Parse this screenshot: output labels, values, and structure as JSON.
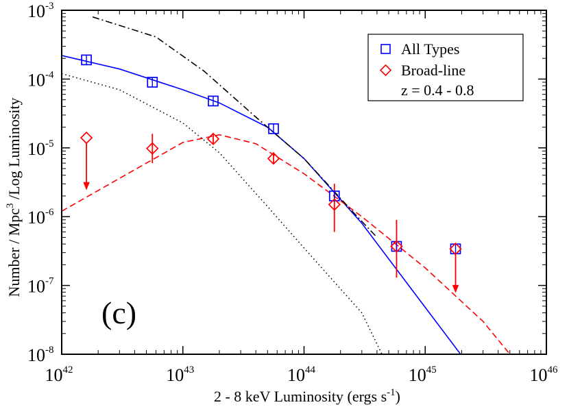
{
  "chart_data": {
    "type": "scatter",
    "title": "",
    "xlabel": "2 - 8 keV Luminosity  (ergs s",
    "xlabel_sup": "-1",
    "xlabel_end": ")",
    "ylabel": "Number / Mpc",
    "ylabel_sup": "3",
    "ylabel_end": " /Log Luminosity",
    "x_scale": "log",
    "y_scale": "log",
    "xlim": [
      1e+42,
      1e+46
    ],
    "ylim": [
      1e-08,
      0.001
    ],
    "x_ticks": [
      {
        "value": 1e+42,
        "base": "10",
        "exp": "42"
      },
      {
        "value": 1e+43,
        "base": "10",
        "exp": "43"
      },
      {
        "value": 1e+44,
        "base": "10",
        "exp": "44"
      },
      {
        "value": 1e+45,
        "base": "10",
        "exp": "45"
      },
      {
        "value": 1e+46,
        "base": "10",
        "exp": "46"
      }
    ],
    "y_ticks": [
      {
        "value": 1e-08,
        "base": "10",
        "exp": "-8"
      },
      {
        "value": 1e-07,
        "base": "10",
        "exp": "-7"
      },
      {
        "value": 1e-06,
        "base": "10",
        "exp": "-6"
      },
      {
        "value": 1e-05,
        "base": "10",
        "exp": "-5"
      },
      {
        "value": 0.0001,
        "base": "10",
        "exp": "-4"
      },
      {
        "value": 0.001,
        "base": "10",
        "exp": "-3"
      }
    ],
    "annotation": "(c)",
    "legend": {
      "position": "top-right",
      "entries": [
        {
          "label": "All Types",
          "marker": "square",
          "color": "#0000ff"
        },
        {
          "label": "Broad-line",
          "marker": "diamond",
          "color": "#ff0000"
        }
      ],
      "note": "z = 0.4 - 0.8"
    },
    "series": [
      {
        "name": "All Types",
        "marker": "square",
        "color": "#0000ff",
        "points": [
          {
            "x": 1.6e+42,
            "y": 0.00019
          },
          {
            "x": 5.6e+42,
            "y": 9e-05
          },
          {
            "x": 1.78e+43,
            "y": 4.8e-05
          },
          {
            "x": 5.6e+43,
            "y": 1.9e-05
          },
          {
            "x": 1.78e+44,
            "y": 2e-06
          },
          {
            "x": 5.8e+44,
            "y": 3.7e-07
          },
          {
            "x": 1.78e+45,
            "y": 3.4e-07
          }
        ]
      },
      {
        "name": "Broad-line",
        "marker": "diamond",
        "color": "#ff0000",
        "points": [
          {
            "x": 1.6e+42,
            "y": 1.4e-05,
            "upper_limit": true,
            "err_low": 2.5e-06
          },
          {
            "x": 5.6e+42,
            "y": 9.8e-06,
            "err_low": 6e-06,
            "err_high": 1.6e-05
          },
          {
            "x": 1.78e+43,
            "y": 1.35e-05,
            "err_low": 1.15e-05,
            "err_high": 1.6e-05
          },
          {
            "x": 5.6e+43,
            "y": 7e-06,
            "err_low": 5.8e-06,
            "err_high": 8.6e-06
          },
          {
            "x": 1.78e+44,
            "y": 1.5e-06,
            "err_low": 6e-07,
            "err_high": 3e-06
          },
          {
            "x": 5.8e+44,
            "y": 3.7e-07,
            "err_low": 1.3e-07,
            "err_high": 9e-07
          },
          {
            "x": 1.78e+45,
            "y": 3.4e-07,
            "upper_limit": true,
            "err_low": 8e-08
          }
        ]
      }
    ],
    "curves": [
      {
        "style": "solid",
        "color": "#0000ff",
        "points": [
          [
            1e+42,
            0.00022
          ],
          [
            3e+42,
            0.00014
          ],
          [
            1e+43,
            7e-05
          ],
          [
            2e+43,
            4.5e-05
          ],
          [
            5e+43,
            2e-05
          ],
          [
            1e+44,
            7e-06
          ],
          [
            3e+44,
            8e-07
          ],
          [
            1e+45,
            4.8e-08
          ],
          [
            2.1e+45,
            8.5e-09
          ]
        ]
      },
      {
        "style": "dashed",
        "color": "#ff0000",
        "points": [
          [
            1e+42,
            1.2e-06
          ],
          [
            3e+42,
            3.6e-06
          ],
          [
            1e+43,
            1.2e-05
          ],
          [
            2e+43,
            1.55e-05
          ],
          [
            4e+43,
            1.15e-05
          ],
          [
            1e+44,
            4.2e-06
          ],
          [
            3e+44,
            1e-06
          ],
          [
            1e+45,
            1.8e-07
          ],
          [
            3e+45,
            3e-08
          ],
          [
            5e+45,
            1e-08
          ]
        ]
      },
      {
        "style": "dotted",
        "color": "#000000",
        "points": [
          [
            1e+42,
            0.00012
          ],
          [
            3e+42,
            7e-05
          ],
          [
            1e+43,
            2.3e-05
          ],
          [
            2e+43,
            8.5e-06
          ],
          [
            5e+43,
            1.4e-06
          ],
          [
            1e+44,
            3.5e-07
          ],
          [
            3e+44,
            4e-08
          ],
          [
            4.4e+44,
            1e-08
          ]
        ]
      },
      {
        "style": "dashdot",
        "color": "#000000",
        "points": [
          [
            1.8e+42,
            0.0008
          ],
          [
            6e+42,
            0.00041
          ],
          [
            1.5e+43,
            0.00013
          ],
          [
            4e+43,
            2.8e-05
          ],
          [
            1e+44,
            7e-06
          ],
          [
            2.5e+44,
            1.2e-06
          ],
          [
            4e+44,
            5e-07
          ]
        ]
      }
    ]
  }
}
